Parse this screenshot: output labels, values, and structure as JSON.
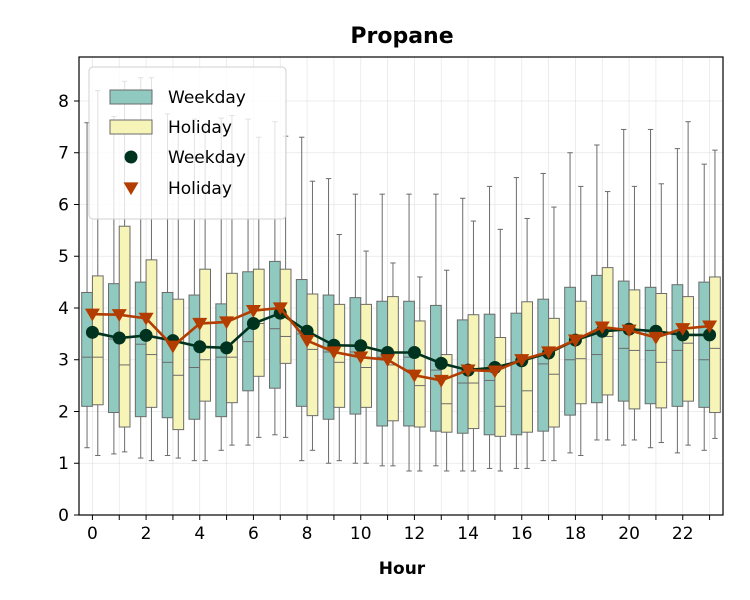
{
  "chart_data": {
    "type": "box",
    "title": "Propane",
    "xlabel": "Hour",
    "ylabel": "",
    "ylim": [
      0,
      8.85
    ],
    "xlim": [
      -0.5,
      23.5
    ],
    "x_ticks": [
      0,
      2,
      4,
      6,
      8,
      10,
      12,
      14,
      16,
      18,
      20,
      22
    ],
    "y_ticks": [
      0,
      1,
      2,
      3,
      4,
      5,
      6,
      7,
      8
    ],
    "grid": true,
    "legend_position": "top-left",
    "legend": [
      "Weekday",
      "Holiday",
      "Weekday",
      "Holiday"
    ],
    "hours": [
      0,
      1,
      2,
      3,
      4,
      5,
      6,
      7,
      8,
      9,
      10,
      11,
      12,
      13,
      14,
      15,
      16,
      17,
      18,
      19,
      20,
      21,
      22,
      23
    ],
    "colors": {
      "weekday_box": "#8fc9bf",
      "holiday_box": "#f7f4b8",
      "weekday_line": "#00331f",
      "holiday_line": "#b33c00",
      "box_edge": "#6b6b6b"
    },
    "box_series": [
      {
        "name": "Weekday",
        "whisker_low": [
          1.3,
          1.18,
          1.1,
          1.15,
          1.05,
          1.25,
          1.35,
          1.55,
          1.05,
          1.0,
          1.0,
          0.95,
          0.85,
          0.95,
          0.85,
          0.9,
          0.9,
          1.05,
          1.2,
          1.45,
          1.35,
          1.3,
          1.2,
          1.25
        ],
        "q1": [
          2.1,
          1.98,
          1.9,
          1.88,
          1.85,
          1.9,
          2.4,
          2.45,
          2.1,
          1.85,
          1.95,
          1.72,
          1.72,
          1.62,
          1.58,
          1.55,
          1.55,
          1.62,
          1.93,
          2.17,
          2.2,
          2.15,
          2.1,
          2.08
        ],
        "median": [
          3.05,
          3.4,
          3.3,
          2.95,
          2.85,
          3.05,
          3.35,
          3.6,
          3.5,
          3.15,
          3.15,
          3.05,
          3.05,
          2.8,
          2.55,
          2.6,
          2.95,
          2.92,
          3.0,
          3.1,
          3.22,
          3.18,
          3.18,
          3.0
        ],
        "q3": [
          4.3,
          4.47,
          4.5,
          4.3,
          4.25,
          4.08,
          4.7,
          4.9,
          4.55,
          4.25,
          4.2,
          4.13,
          4.13,
          4.05,
          3.77,
          3.88,
          3.9,
          4.17,
          4.4,
          4.63,
          4.52,
          4.4,
          4.45,
          4.5
        ],
        "whisker_high": [
          7.58,
          7.7,
          8.45,
          7.75,
          7.65,
          7.67,
          7.65,
          7.6,
          7.3,
          6.5,
          6.2,
          6.2,
          6.2,
          6.2,
          6.12,
          6.35,
          6.52,
          6.6,
          7.0,
          7.15,
          7.45,
          7.45,
          7.08,
          6.78
        ]
      },
      {
        "name": "Holiday",
        "whisker_low": [
          1.15,
          1.22,
          1.05,
          1.1,
          1.05,
          1.35,
          1.5,
          1.5,
          1.25,
          1.05,
          1.0,
          0.95,
          0.85,
          0.85,
          0.85,
          0.85,
          0.9,
          1.05,
          1.15,
          1.45,
          1.45,
          1.4,
          1.35,
          1.48
        ],
        "q1": [
          2.13,
          1.7,
          2.08,
          1.65,
          2.2,
          2.17,
          2.68,
          2.93,
          1.92,
          2.08,
          2.08,
          1.82,
          1.7,
          1.6,
          1.67,
          1.52,
          1.6,
          1.7,
          2.15,
          2.32,
          2.05,
          2.07,
          2.2,
          1.98
        ],
        "median": [
          3.05,
          2.9,
          3.1,
          2.7,
          3.0,
          3.05,
          3.7,
          3.45,
          3.2,
          2.95,
          2.85,
          2.9,
          2.5,
          2.15,
          2.55,
          2.1,
          2.4,
          2.72,
          3.02,
          3.45,
          3.18,
          2.95,
          3.32,
          3.22
        ],
        "q3": [
          4.62,
          5.58,
          4.93,
          4.17,
          4.75,
          4.67,
          4.75,
          4.75,
          4.27,
          4.07,
          4.07,
          4.22,
          3.75,
          3.1,
          3.87,
          3.43,
          4.12,
          3.8,
          4.13,
          4.78,
          4.35,
          4.28,
          4.22,
          4.6
        ],
        "whisker_high": [
          8.2,
          8.38,
          8.45,
          7.5,
          7.55,
          7.72,
          7.3,
          7.32,
          6.45,
          5.42,
          5.1,
          4.87,
          4.6,
          4.73,
          5.68,
          5.52,
          5.73,
          5.95,
          6.35,
          6.25,
          6.35,
          6.4,
          7.6,
          7.05
        ]
      }
    ],
    "line_series": [
      {
        "name": "Weekday",
        "marker": "circle",
        "values": [
          3.53,
          3.42,
          3.47,
          3.37,
          3.25,
          3.23,
          3.7,
          3.9,
          3.55,
          3.28,
          3.27,
          3.14,
          3.14,
          2.93,
          2.8,
          2.85,
          2.98,
          3.13,
          3.38,
          3.55,
          3.59,
          3.55,
          3.48,
          3.48
        ]
      },
      {
        "name": "Holiday",
        "marker": "triangle-down",
        "values": [
          3.88,
          3.87,
          3.8,
          3.26,
          3.7,
          3.73,
          3.95,
          4.0,
          3.37,
          3.15,
          3.05,
          3.0,
          2.7,
          2.6,
          2.8,
          2.78,
          3.0,
          3.15,
          3.38,
          3.63,
          3.57,
          3.43,
          3.6,
          3.65
        ]
      }
    ]
  }
}
